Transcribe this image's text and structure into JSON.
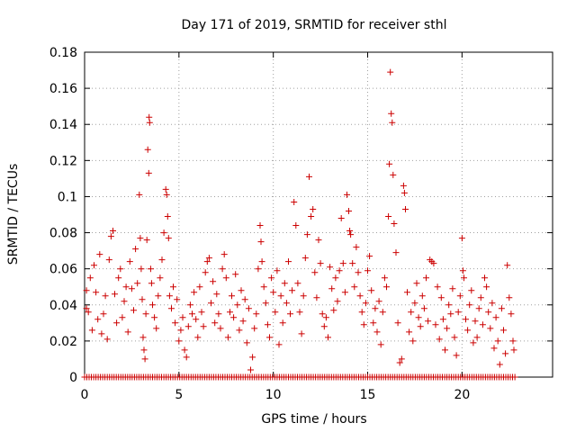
{
  "chart_data": {
    "type": "scatter",
    "title": "Day 171 of 2019, SRMTID for receiver sthl",
    "xlabel": "GPS time / hours",
    "ylabel": "SRMTID / TECUs",
    "xlim": [
      0,
      24.8
    ],
    "ylim": [
      0,
      0.18
    ],
    "xticks": [
      0,
      5,
      10,
      15,
      20
    ],
    "xtick_labels": [
      "0",
      "5",
      "10",
      "15",
      "20"
    ],
    "yticks": [
      0,
      0.02,
      0.04,
      0.06,
      0.08,
      0.1,
      0.12,
      0.14,
      0.16,
      0.18
    ],
    "ytick_labels": [
      "0",
      "0.02",
      "0.04",
      "0.06",
      "0.08",
      "0.1",
      "0.12",
      "0.14",
      "0.16",
      "0.18"
    ],
    "grid": true,
    "marker": "+",
    "color": "#cc0000",
    "series": [
      {
        "name": "SRMTID",
        "baseline_y": 0,
        "baseline_x_range": [
          0,
          22.8
        ],
        "baseline_step": 0.12,
        "points": [
          [
            0.1,
            0.038
          ],
          [
            0.1,
            0.048
          ],
          [
            0.2,
            0.036
          ],
          [
            0.3,
            0.055
          ],
          [
            0.4,
            0.026
          ],
          [
            0.5,
            0.062
          ],
          [
            0.6,
            0.047
          ],
          [
            0.7,
            0.032
          ],
          [
            0.8,
            0.068
          ],
          [
            0.9,
            0.024
          ],
          [
            1.0,
            0.035
          ],
          [
            1.1,
            0.045
          ],
          [
            1.2,
            0.021
          ],
          [
            1.3,
            0.065
          ],
          [
            1.4,
            0.078
          ],
          [
            1.5,
            0.081
          ],
          [
            1.6,
            0.046
          ],
          [
            1.7,
            0.03
          ],
          [
            1.8,
            0.055
          ],
          [
            1.9,
            0.06
          ],
          [
            2.0,
            0.033
          ],
          [
            2.1,
            0.042
          ],
          [
            2.2,
            0.05
          ],
          [
            2.3,
            0.025
          ],
          [
            2.4,
            0.064
          ],
          [
            2.5,
            0.049
          ],
          [
            2.6,
            0.037
          ],
          [
            2.7,
            0.071
          ],
          [
            2.8,
            0.052
          ],
          [
            2.9,
            0.101
          ],
          [
            2.95,
            0.077
          ],
          [
            3.0,
            0.06
          ],
          [
            3.05,
            0.043
          ],
          [
            3.1,
            0.022
          ],
          [
            3.15,
            0.015
          ],
          [
            3.2,
            0.01
          ],
          [
            3.25,
            0.035
          ],
          [
            3.3,
            0.076
          ],
          [
            3.35,
            0.126
          ],
          [
            3.4,
            0.113
          ],
          [
            3.42,
            0.144
          ],
          [
            3.45,
            0.141
          ],
          [
            3.5,
            0.06
          ],
          [
            3.55,
            0.052
          ],
          [
            3.6,
            0.04
          ],
          [
            3.7,
            0.033
          ],
          [
            3.8,
            0.027
          ],
          [
            3.9,
            0.045
          ],
          [
            4.0,
            0.055
          ],
          [
            4.1,
            0.065
          ],
          [
            4.2,
            0.08
          ],
          [
            4.3,
            0.104
          ],
          [
            4.35,
            0.101
          ],
          [
            4.4,
            0.089
          ],
          [
            4.45,
            0.077
          ],
          [
            4.5,
            0.045
          ],
          [
            4.6,
            0.038
          ],
          [
            4.7,
            0.05
          ],
          [
            4.8,
            0.03
          ],
          [
            4.9,
            0.043
          ],
          [
            5.0,
            0.02
          ],
          [
            5.1,
            0.026
          ],
          [
            5.2,
            0.033
          ],
          [
            5.3,
            0.015
          ],
          [
            5.4,
            0.011
          ],
          [
            5.5,
            0.028
          ],
          [
            5.6,
            0.04
          ],
          [
            5.7,
            0.035
          ],
          [
            5.8,
            0.047
          ],
          [
            5.9,
            0.032
          ],
          [
            6.0,
            0.022
          ],
          [
            6.1,
            0.05
          ],
          [
            6.2,
            0.036
          ],
          [
            6.3,
            0.028
          ],
          [
            6.4,
            0.058
          ],
          [
            6.5,
            0.064
          ],
          [
            6.6,
            0.066
          ],
          [
            6.7,
            0.041
          ],
          [
            6.8,
            0.053
          ],
          [
            6.9,
            0.03
          ],
          [
            7.0,
            0.046
          ],
          [
            7.1,
            0.035
          ],
          [
            7.2,
            0.027
          ],
          [
            7.3,
            0.06
          ],
          [
            7.4,
            0.068
          ],
          [
            7.5,
            0.055
          ],
          [
            7.6,
            0.022
          ],
          [
            7.7,
            0.036
          ],
          [
            7.8,
            0.045
          ],
          [
            7.9,
            0.033
          ],
          [
            8.0,
            0.057
          ],
          [
            8.1,
            0.04
          ],
          [
            8.2,
            0.026
          ],
          [
            8.3,
            0.048
          ],
          [
            8.4,
            0.031
          ],
          [
            8.5,
            0.043
          ],
          [
            8.6,
            0.019
          ],
          [
            8.7,
            0.038
          ],
          [
            8.8,
            0.004
          ],
          [
            8.9,
            0.011
          ],
          [
            9.0,
            0.027
          ],
          [
            9.1,
            0.035
          ],
          [
            9.2,
            0.06
          ],
          [
            9.3,
            0.084
          ],
          [
            9.35,
            0.075
          ],
          [
            9.4,
            0.064
          ],
          [
            9.5,
            0.05
          ],
          [
            9.6,
            0.041
          ],
          [
            9.7,
            0.029
          ],
          [
            9.8,
            0.022
          ],
          [
            9.9,
            0.055
          ],
          [
            10.0,
            0.047
          ],
          [
            10.1,
            0.036
          ],
          [
            10.2,
            0.059
          ],
          [
            10.3,
            0.018
          ],
          [
            10.4,
            0.045
          ],
          [
            10.5,
            0.03
          ],
          [
            10.6,
            0.052
          ],
          [
            10.7,
            0.041
          ],
          [
            10.8,
            0.064
          ],
          [
            10.9,
            0.035
          ],
          [
            11.0,
            0.048
          ],
          [
            11.1,
            0.097
          ],
          [
            11.2,
            0.084
          ],
          [
            11.3,
            0.052
          ],
          [
            11.4,
            0.036
          ],
          [
            11.5,
            0.024
          ],
          [
            11.6,
            0.045
          ],
          [
            11.7,
            0.066
          ],
          [
            11.8,
            0.079
          ],
          [
            11.9,
            0.111
          ],
          [
            12.0,
            0.089
          ],
          [
            12.1,
            0.093
          ],
          [
            12.2,
            0.058
          ],
          [
            12.3,
            0.044
          ],
          [
            12.4,
            0.076
          ],
          [
            12.5,
            0.063
          ],
          [
            12.6,
            0.035
          ],
          [
            12.7,
            0.028
          ],
          [
            12.8,
            0.033
          ],
          [
            12.9,
            0.022
          ],
          [
            13.0,
            0.061
          ],
          [
            13.1,
            0.049
          ],
          [
            13.2,
            0.037
          ],
          [
            13.3,
            0.055
          ],
          [
            13.4,
            0.042
          ],
          [
            13.5,
            0.059
          ],
          [
            13.6,
            0.088
          ],
          [
            13.7,
            0.063
          ],
          [
            13.8,
            0.047
          ],
          [
            13.9,
            0.101
          ],
          [
            14.0,
            0.092
          ],
          [
            14.05,
            0.081
          ],
          [
            14.1,
            0.079
          ],
          [
            14.2,
            0.063
          ],
          [
            14.3,
            0.05
          ],
          [
            14.4,
            0.072
          ],
          [
            14.5,
            0.058
          ],
          [
            14.6,
            0.045
          ],
          [
            14.7,
            0.036
          ],
          [
            14.8,
            0.029
          ],
          [
            14.9,
            0.041
          ],
          [
            15.0,
            0.059
          ],
          [
            15.1,
            0.067
          ],
          [
            15.2,
            0.048
          ],
          [
            15.3,
            0.03
          ],
          [
            15.4,
            0.038
          ],
          [
            15.5,
            0.025
          ],
          [
            15.6,
            0.042
          ],
          [
            15.7,
            0.018
          ],
          [
            15.8,
            0.036
          ],
          [
            15.9,
            0.055
          ],
          [
            16.0,
            0.05
          ],
          [
            16.1,
            0.089
          ],
          [
            16.15,
            0.118
          ],
          [
            16.2,
            0.169
          ],
          [
            16.25,
            0.146
          ],
          [
            16.3,
            0.141
          ],
          [
            16.35,
            0.112
          ],
          [
            16.4,
            0.085
          ],
          [
            16.5,
            0.069
          ],
          [
            16.6,
            0.03
          ],
          [
            16.7,
            0.008
          ],
          [
            16.8,
            0.01
          ],
          [
            16.9,
            0.106
          ],
          [
            16.95,
            0.102
          ],
          [
            17.0,
            0.093
          ],
          [
            17.1,
            0.047
          ],
          [
            17.2,
            0.025
          ],
          [
            17.3,
            0.036
          ],
          [
            17.4,
            0.02
          ],
          [
            17.5,
            0.041
          ],
          [
            17.6,
            0.052
          ],
          [
            17.7,
            0.033
          ],
          [
            17.8,
            0.028
          ],
          [
            17.9,
            0.045
          ],
          [
            18.0,
            0.038
          ],
          [
            18.1,
            0.055
          ],
          [
            18.2,
            0.031
          ],
          [
            18.3,
            0.065
          ],
          [
            18.4,
            0.064
          ],
          [
            18.5,
            0.063
          ],
          [
            18.6,
            0.029
          ],
          [
            18.7,
            0.05
          ],
          [
            18.8,
            0.021
          ],
          [
            18.9,
            0.044
          ],
          [
            19.0,
            0.032
          ],
          [
            19.1,
            0.015
          ],
          [
            19.2,
            0.027
          ],
          [
            19.3,
            0.04
          ],
          [
            19.4,
            0.035
          ],
          [
            19.5,
            0.049
          ],
          [
            19.6,
            0.022
          ],
          [
            19.7,
            0.012
          ],
          [
            19.8,
            0.036
          ],
          [
            19.9,
            0.045
          ],
          [
            20.0,
            0.077
          ],
          [
            20.05,
            0.059
          ],
          [
            20.1,
            0.055
          ],
          [
            20.2,
            0.032
          ],
          [
            20.3,
            0.026
          ],
          [
            20.4,
            0.04
          ],
          [
            20.5,
            0.048
          ],
          [
            20.6,
            0.019
          ],
          [
            20.7,
            0.031
          ],
          [
            20.8,
            0.022
          ],
          [
            20.9,
            0.038
          ],
          [
            21.0,
            0.044
          ],
          [
            21.1,
            0.029
          ],
          [
            21.2,
            0.055
          ],
          [
            21.3,
            0.05
          ],
          [
            21.4,
            0.036
          ],
          [
            21.5,
            0.027
          ],
          [
            21.6,
            0.041
          ],
          [
            21.7,
            0.016
          ],
          [
            21.8,
            0.033
          ],
          [
            21.9,
            0.02
          ],
          [
            22.0,
            0.007
          ],
          [
            22.1,
            0.038
          ],
          [
            22.2,
            0.026
          ],
          [
            22.3,
            0.013
          ],
          [
            22.4,
            0.062
          ],
          [
            22.5,
            0.044
          ],
          [
            22.6,
            0.035
          ],
          [
            22.7,
            0.02
          ],
          [
            22.75,
            0.015
          ]
        ]
      }
    ]
  }
}
